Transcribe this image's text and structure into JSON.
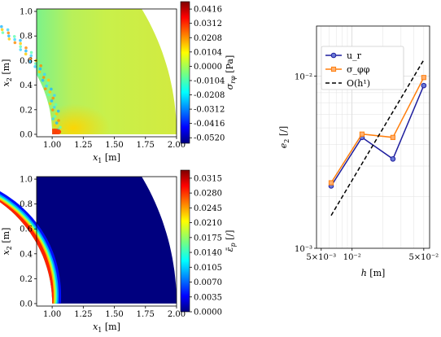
{
  "chart_data": [
    {
      "type": "heatmap",
      "xlabel": "x₁ [m]",
      "ylabel": "x₂ [m]",
      "xlim": [
        0.875,
        2.0
      ],
      "ylim": [
        -0.02,
        1.02
      ],
      "xticks": [
        "1.00",
        "1.25",
        "1.50",
        "1.75",
        "2.00"
      ],
      "yticks": [
        "0.0",
        "0.2",
        "0.4",
        "0.6",
        "0.8",
        "1.0"
      ],
      "colorbar": {
        "label": "σ rφ [Pa]",
        "ticks": [
          "0.0416",
          "0.0312",
          "0.0208",
          "0.0104",
          "0.0000",
          "-0.0104",
          "-0.0208",
          "-0.0312",
          "-0.0416",
          "-0.0520"
        ],
        "range": [
          -0.056,
          0.047
        ],
        "colormap": "jet"
      },
      "domain": {
        "inner_radius": 1.0,
        "outer_radius": 2.0,
        "angle_deg": [
          0,
          60
        ]
      }
    },
    {
      "type": "heatmap",
      "xlabel": "x₁ [m]",
      "ylabel": "x₂ [m]",
      "xlim": [
        0.875,
        2.0
      ],
      "ylim": [
        -0.02,
        1.02
      ],
      "xticks": [
        "1.00",
        "1.25",
        "1.50",
        "1.75",
        "2.00"
      ],
      "yticks": [
        "0.0",
        "0.2",
        "0.4",
        "0.6",
        "0.8",
        "1.0"
      ],
      "colorbar": {
        "label": "ε̄ p [/]",
        "ticks": [
          "0.0315",
          "0.0280",
          "0.0245",
          "0.0210",
          "0.0175",
          "0.0140",
          "0.0105",
          "0.0070",
          "0.0035",
          "0.0000"
        ],
        "range": [
          0.0,
          0.0334
        ],
        "colormap": "jet"
      },
      "domain": {
        "inner_radius": 1.0,
        "outer_radius": 2.0,
        "angle_deg": [
          0,
          60
        ]
      }
    },
    {
      "type": "line",
      "xscale": "log",
      "yscale": "log",
      "xlabel": "h [m]",
      "ylabel": "e₂ [/]",
      "xlim": [
        0.0045,
        0.057
      ],
      "ylim": [
        0.001,
        0.0195
      ],
      "xticks": [
        "5×10⁻³",
        "10⁻²",
        "5×10⁻²"
      ],
      "yticks": [
        "10⁻³",
        "10⁻²"
      ],
      "grid": true,
      "legend": "top-left",
      "series": [
        {
          "name": "u_r",
          "color": "#1f1f9e",
          "marker": "circle",
          "x": [
            0.00625,
            0.0125,
            0.025,
            0.05
          ],
          "y": [
            0.0023,
            0.0044,
            0.0033,
            0.0088
          ]
        },
        {
          "name": "σ_φφ",
          "color": "#ff7f0e",
          "marker": "square",
          "x": [
            0.00625,
            0.0125,
            0.025,
            0.05
          ],
          "y": [
            0.0024,
            0.0046,
            0.0044,
            0.0098
          ]
        },
        {
          "name": "O(h¹)",
          "color": "#000000",
          "dash": true,
          "x": [
            0.00625,
            0.05
          ],
          "y": [
            0.00155,
            0.0124
          ]
        }
      ]
    }
  ]
}
